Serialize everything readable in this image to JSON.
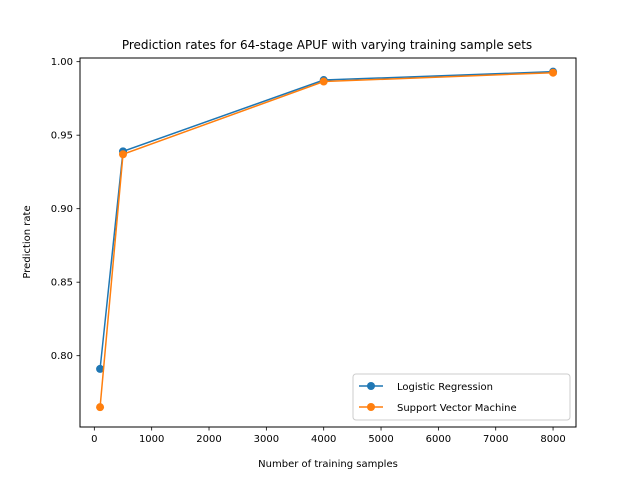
{
  "chart_data": {
    "type": "line",
    "title": "Prediction rates for 64-stage APUF with varying training sample sets",
    "xlabel": "Number of training samples",
    "ylabel": "Prediction rate",
    "xlim": [
      -250,
      8400
    ],
    "ylim": [
      0.7515,
      1.0025
    ],
    "xticks": [
      0,
      1000,
      2000,
      3000,
      4000,
      5000,
      6000,
      7000,
      8000
    ],
    "yticks": [
      0.8,
      0.85,
      0.9,
      0.95,
      1.0
    ],
    "xtick_labels": [
      "0",
      "1000",
      "2000",
      "3000",
      "4000",
      "5000",
      "6000",
      "7000",
      "8000"
    ],
    "ytick_labels": [
      "0.80",
      "0.85",
      "0.90",
      "0.95",
      "1.00"
    ],
    "grid": false,
    "legend_position": "lower-right",
    "series": [
      {
        "name": "Logistic Regression",
        "color": "#1f77b4",
        "x": [
          100,
          500,
          4000,
          8000
        ],
        "y": [
          0.791,
          0.939,
          0.9875,
          0.9932
        ]
      },
      {
        "name": "Support Vector Machine",
        "color": "#ff7f0e",
        "x": [
          100,
          500,
          4000,
          8000
        ],
        "y": [
          0.765,
          0.937,
          0.9865,
          0.9925
        ]
      }
    ]
  }
}
